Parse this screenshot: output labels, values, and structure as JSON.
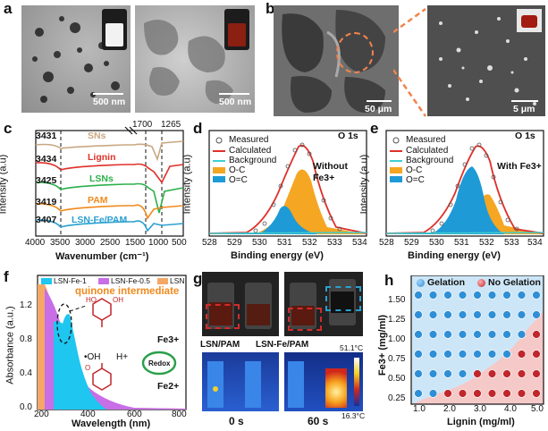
{
  "panels": {
    "a": {
      "letter": "a",
      "scale_left": "500 nm",
      "scale_right": "500 nm"
    },
    "b": {
      "letter": "b",
      "scale_left": "50 μm",
      "scale_right": "5 μm"
    },
    "c": {
      "letter": "c",
      "ylabel": "Intensity (a.u)",
      "xlabel": "Wavenumber (cm⁻¹)",
      "peak_labels": [
        "1700",
        "1265"
      ],
      "xticks": [
        "4000",
        "3500",
        "3000",
        "2500",
        "1500",
        "1000",
        "500"
      ],
      "traces": [
        {
          "name": "SNs",
          "peak": "3431",
          "color": "#c8a882"
        },
        {
          "name": "Lignin",
          "peak": "3434",
          "color": "#e0302a"
        },
        {
          "name": "LSNs",
          "peak": "3425",
          "color": "#2bb04a"
        },
        {
          "name": "PAM",
          "peak": "3419",
          "color": "#f08a1c"
        },
        {
          "name": "LSN-Fe/PAM",
          "peak": "3407",
          "color": "#2aa0d0"
        }
      ]
    },
    "d": {
      "letter": "d",
      "title": "O 1s",
      "ylabel": "Intensity (a.u)",
      "xlabel": "Binding energy (eV)",
      "annotation": "Without Fe3+",
      "legend": [
        "Measured",
        "Calculated",
        "Background",
        "O-C",
        "O=C"
      ],
      "xticks": [
        "528",
        "529",
        "530",
        "531",
        "532",
        "533",
        "534"
      ]
    },
    "e": {
      "letter": "e",
      "title": "O 1s",
      "ylabel": "Intensity (a.u)",
      "xlabel": "Binding energy (eV)",
      "annotation": "With Fe3+",
      "legend": [
        "Measured",
        "Calculated",
        "Background",
        "O-C",
        "O=C"
      ],
      "xticks": [
        "528",
        "529",
        "530",
        "531",
        "532",
        "533",
        "534"
      ]
    },
    "f": {
      "letter": "f",
      "ylabel": "Absorbance (a.u.)",
      "xlabel": "Wavelength (nm)",
      "legend": [
        "LSN-Fe-1",
        "LSN-Fe-0.5",
        "LSN"
      ],
      "legend_colors": [
        "#1ec6f0",
        "#c86ee6",
        "#f4a866"
      ],
      "xticks": [
        "200",
        "400",
        "600",
        "800"
      ],
      "yticks": [
        "0.0",
        "0.4",
        "0.8",
        "1.2"
      ],
      "quinone": "quinone intermediate",
      "redox": "Redox",
      "fe3": "Fe3+",
      "fe2": "Fe2+",
      "oh": "•OH",
      "h": "H+"
    },
    "g": {
      "letter": "g",
      "label1": "LSN/PAM",
      "label2": "LSN-Fe/PAM",
      "time1": "0 s",
      "time2": "60 s",
      "tmax": "51.1°C",
      "tmin": "16.3°C"
    },
    "h": {
      "letter": "h",
      "ylabel": "Fe3+ (mg/ml)",
      "xlabel": "Lignin (mg/ml)",
      "legend_gel": "Gelation",
      "legend_nogel": "No Gelation",
      "xticks": [
        "1.0",
        "2.0",
        "3.0",
        "4.0",
        "5.0"
      ],
      "yticks": [
        "0.25",
        "0.50",
        "0.75",
        "1.00",
        "1.25",
        "1.50"
      ]
    }
  },
  "chart_data": [
    {
      "type": "heatmap",
      "title": "",
      "xlabel": "Lignin (mg/ml)",
      "ylabel": "Fe3+ (mg/ml)",
      "x": [
        1.0,
        1.5,
        2.0,
        2.5,
        3.0,
        3.5,
        4.0,
        4.5,
        5.0
      ],
      "y": [
        0.25,
        0.5,
        0.75,
        1.0,
        1.25,
        1.5
      ],
      "rows": [
        {
          "y": 1.5,
          "state": [
            "gel",
            "gel",
            "gel",
            "gel",
            "gel",
            "gel",
            "gel",
            "gel",
            "gel"
          ]
        },
        {
          "y": 1.25,
          "state": [
            "gel",
            "gel",
            "gel",
            "gel",
            "gel",
            "gel",
            "gel",
            "gel",
            "gel"
          ]
        },
        {
          "y": 1.0,
          "state": [
            "gel",
            "gel",
            "gel",
            "gel",
            "gel",
            "gel",
            "gel",
            "gel",
            "nogel"
          ]
        },
        {
          "y": 0.75,
          "state": [
            "gel",
            "gel",
            "gel",
            "gel",
            "gel",
            "gel",
            "gel",
            "nogel",
            "nogel"
          ]
        },
        {
          "y": 0.5,
          "state": [
            "gel",
            "gel",
            "gel",
            "gel",
            "nogel",
            "nogel",
            "nogel",
            "nogel",
            "nogel"
          ]
        },
        {
          "y": 0.25,
          "state": [
            "gel",
            "gel",
            "nogel",
            "nogel",
            "nogel",
            "nogel",
            "nogel",
            "nogel",
            "nogel"
          ]
        }
      ],
      "colors": {
        "gel": "#2e8fd6",
        "nogel": "#c0262b",
        "gel_region": "#cde6f7",
        "nogel_region": "#f6c9c9"
      }
    },
    {
      "type": "area",
      "title": "O 1s",
      "xlabel": "Binding energy (eV)",
      "ylabel": "Intensity (a.u)",
      "xlim": [
        528,
        534
      ],
      "series": [
        {
          "name": "O-C",
          "center": 531.2,
          "height": 0.72,
          "width": 0.75,
          "color": "#f5a623"
        },
        {
          "name": "O=C",
          "center": 530.8,
          "height": 0.38,
          "width": 0.6,
          "color": "#1e9ad6"
        }
      ]
    },
    {
      "type": "area",
      "title": "O 1s",
      "xlabel": "Binding energy (eV)",
      "ylabel": "Intensity (a.u)",
      "xlim": [
        528,
        534
      ],
      "series": [
        {
          "name": "O-C",
          "center": 531.75,
          "height": 0.5,
          "width": 0.55,
          "color": "#f5a623"
        },
        {
          "name": "O=C",
          "center": 531.0,
          "height": 0.7,
          "width": 0.65,
          "color": "#1e9ad6"
        }
      ]
    },
    {
      "type": "area",
      "xlabel": "Wavelength (nm)",
      "ylabel": "Absorbance (a.u.)",
      "xlim": [
        200,
        800
      ],
      "ylim": [
        0,
        1.6
      ],
      "series": [
        {
          "name": "LSN",
          "points": [
            [
              200,
              1.5
            ],
            [
              230,
              1.3
            ],
            [
              260,
              0.95
            ],
            [
              290,
              0.45
            ],
            [
              320,
              0.25
            ],
            [
              360,
              0.15
            ],
            [
              420,
              0.08
            ],
            [
              500,
              0.05
            ],
            [
              800,
              0.02
            ]
          ],
          "color": "#f4a866"
        },
        {
          "name": "LSN-Fe-0.5",
          "points": [
            [
              200,
              1.5
            ],
            [
              230,
              1.35
            ],
            [
              260,
              1.1
            ],
            [
              290,
              0.9
            ],
            [
              320,
              0.65
            ],
            [
              360,
              0.4
            ],
            [
              420,
              0.2
            ],
            [
              500,
              0.1
            ],
            [
              800,
              0.03
            ]
          ],
          "color": "#c86ee6"
        },
        {
          "name": "LSN-Fe-1",
          "points": [
            [
              230,
              1.2
            ],
            [
              250,
              1.05
            ],
            [
              270,
              1.0
            ],
            [
              290,
              1.15
            ],
            [
              310,
              0.9
            ],
            [
              340,
              0.45
            ],
            [
              380,
              0.15
            ],
            [
              420,
              0.05
            ]
          ],
          "color": "#1ec6f0"
        }
      ]
    }
  ]
}
